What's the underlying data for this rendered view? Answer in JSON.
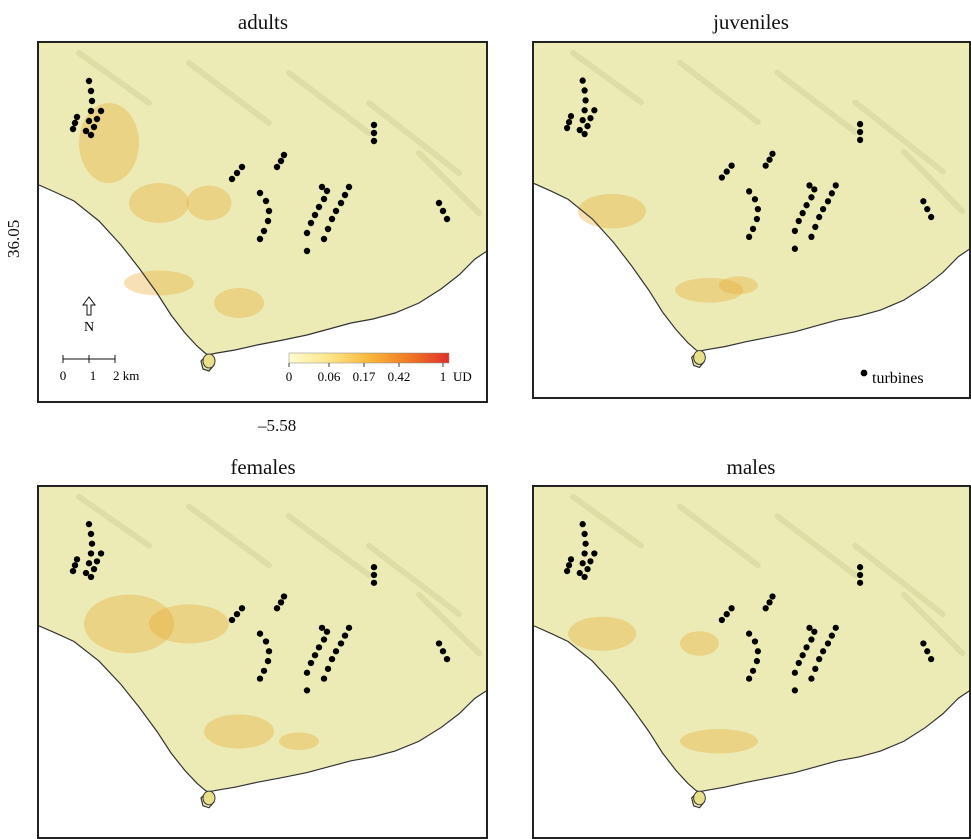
{
  "panels": [
    {
      "id": "adults",
      "title": "adults"
    },
    {
      "id": "juveniles",
      "title": "juveniles"
    },
    {
      "id": "females",
      "title": "females"
    },
    {
      "id": "males",
      "title": "males"
    }
  ],
  "axes": {
    "latitude_label": "36.05",
    "longitude_label": "–5.58"
  },
  "north_arrow": {
    "label": "N"
  },
  "scale_bar": {
    "ticks": [
      "0",
      "1",
      "2 km"
    ]
  },
  "colorbar": {
    "ticks": [
      "0",
      "0.06",
      "0.17",
      "0.42",
      "1"
    ],
    "unit": "UD",
    "colors": [
      "#fffbd0",
      "#fde68a",
      "#f9b73c",
      "#f07a24",
      "#e0302a"
    ]
  },
  "legend": {
    "turbines_label": "turbines"
  },
  "colors": {
    "land": "#ecebb6",
    "sea": "#ffffff",
    "coast": "#333333",
    "turbine": "#000000",
    "high_use": "#e8a52c"
  }
}
